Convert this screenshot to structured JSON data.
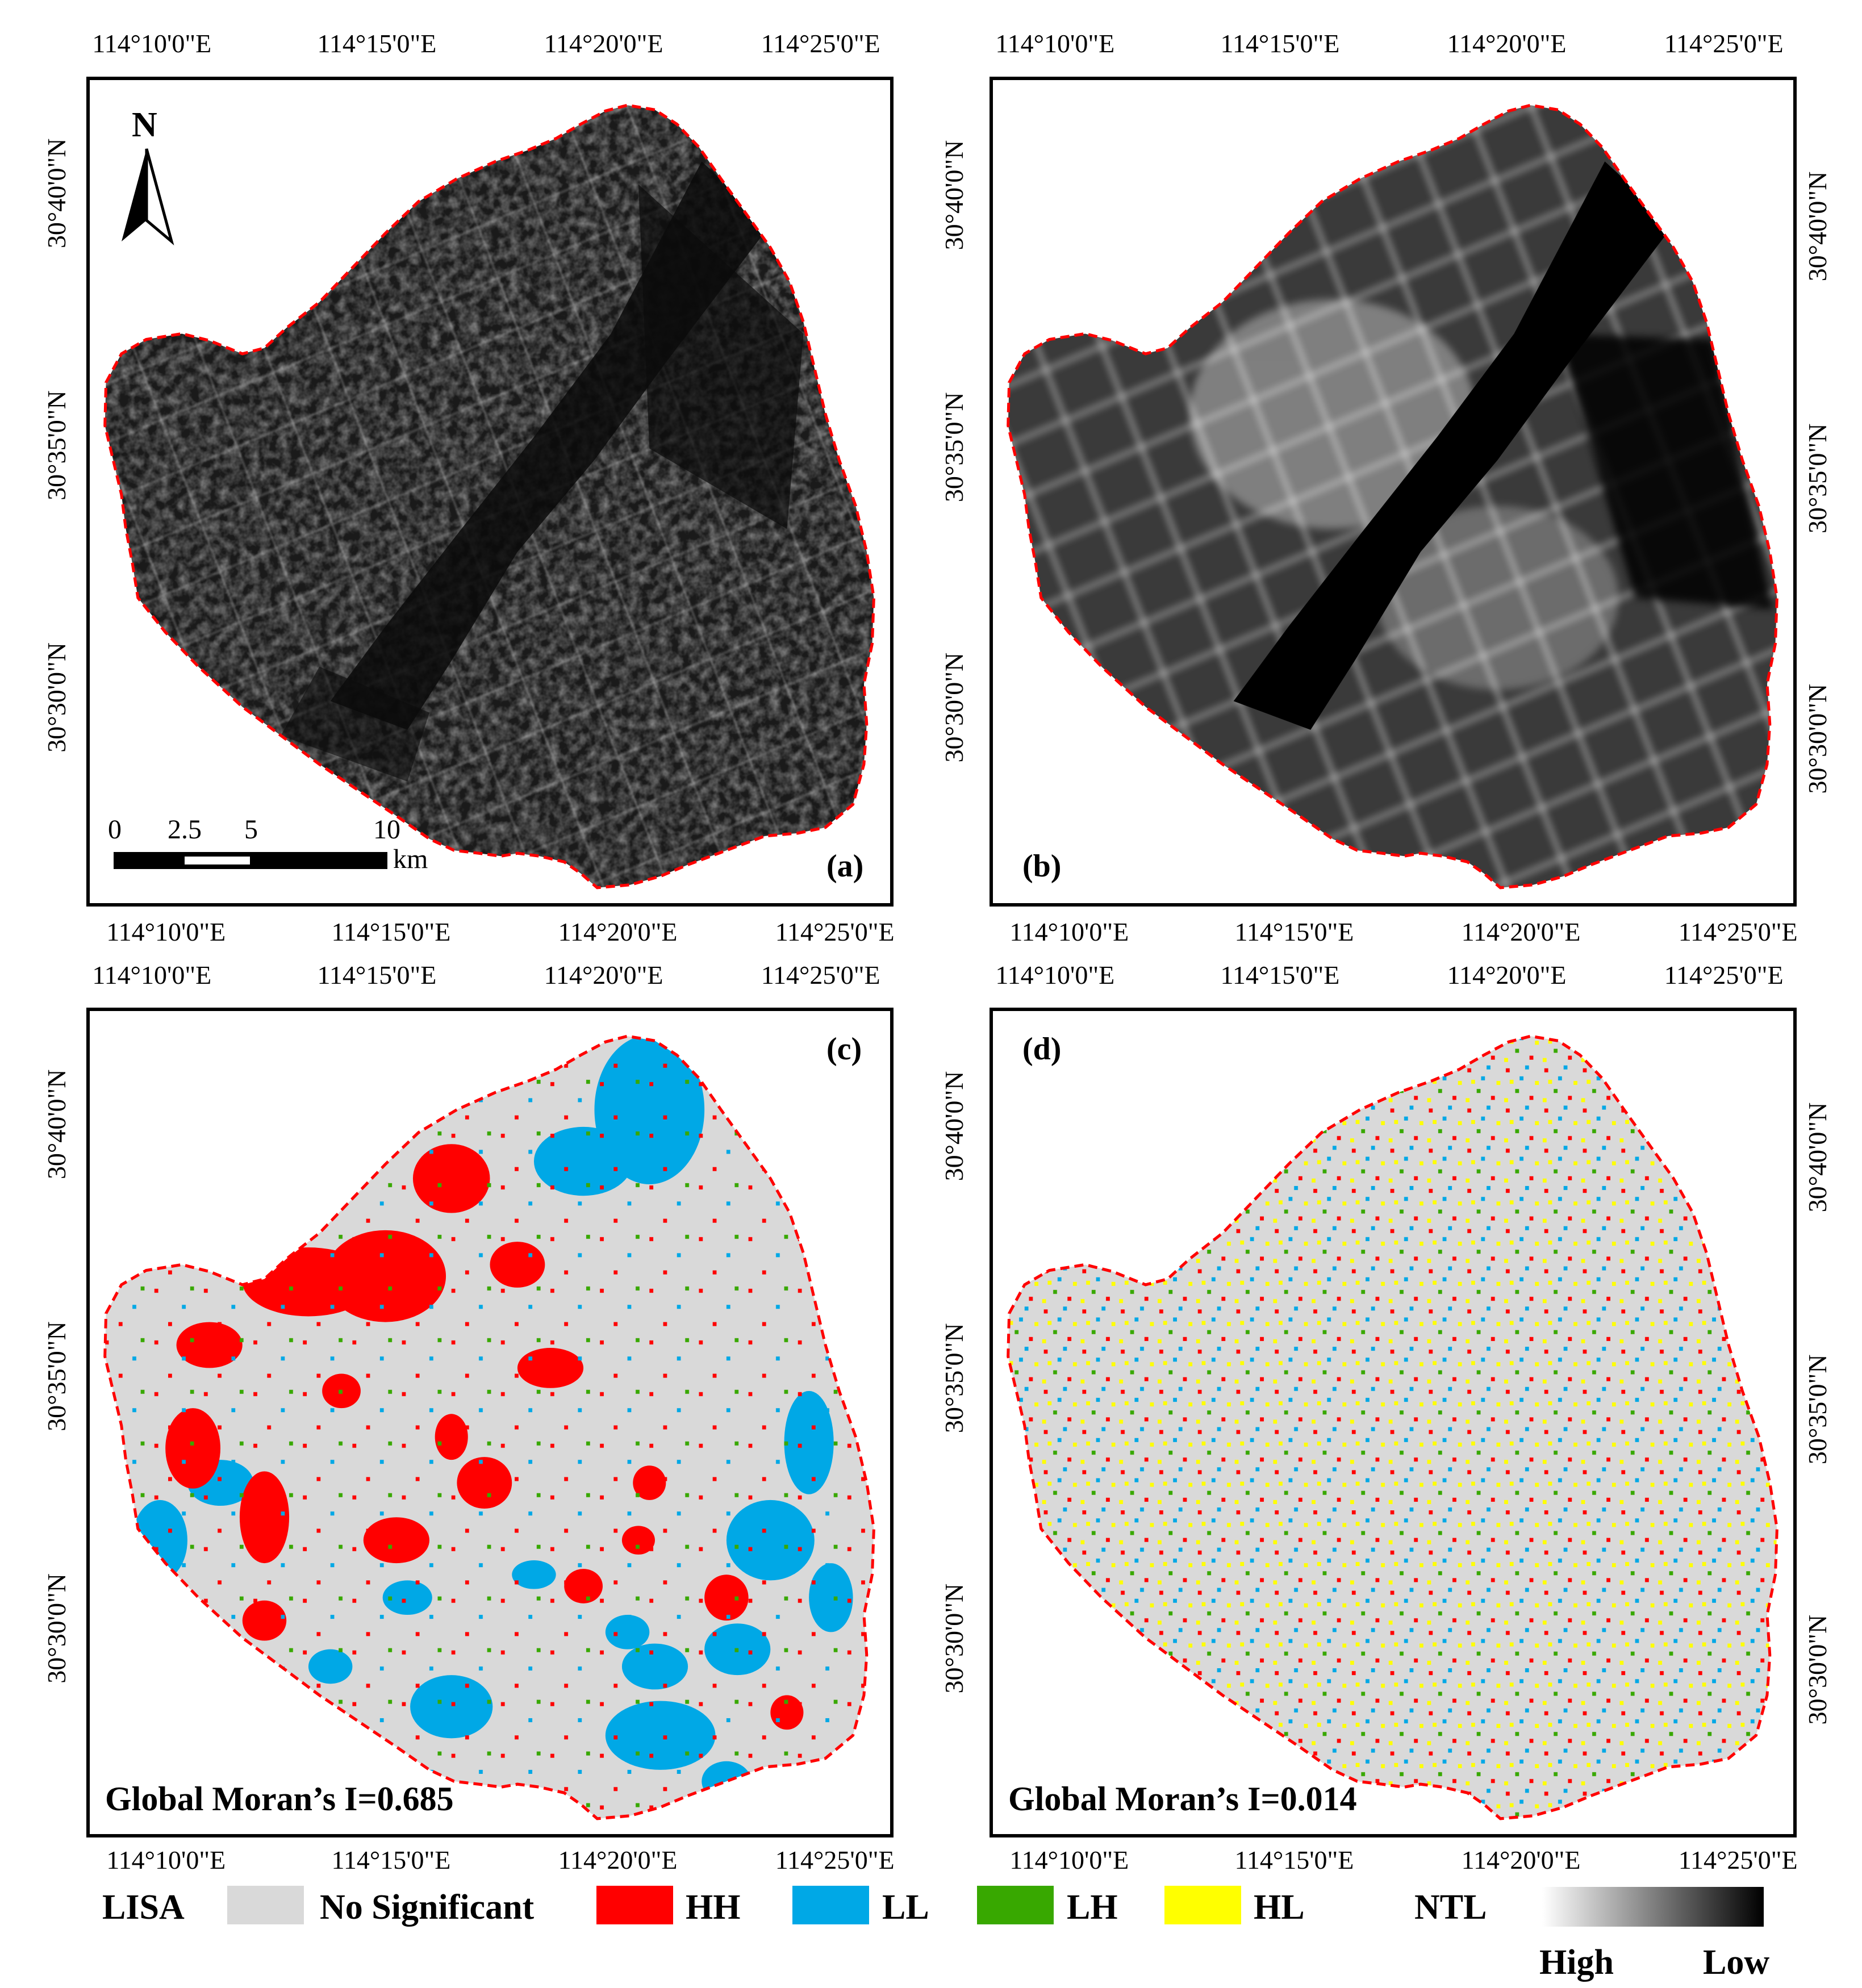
{
  "colors": {
    "no_significant": "#d9d9d9",
    "HH": "#ff0000",
    "LL": "#00a8e6",
    "LH": "#38a800",
    "HL": "#ffff00",
    "boundary": "#ff0000"
  },
  "lon_labels": [
    "114°10'0\"E",
    "114°15'0\"E",
    "114°20'0\"E",
    "114°25'0\"E"
  ],
  "lat_labels": [
    "30°40'0\"N",
    "30°35'0\"N",
    "30°30'0\"N"
  ],
  "panels": [
    {
      "letter": "(a)",
      "kind": "ntl-raw",
      "caption": ""
    },
    {
      "letter": "(b)",
      "kind": "ntl-smoothed",
      "caption": ""
    },
    {
      "letter": "(c)",
      "kind": "lisa-clustered",
      "caption": "Global Moran’s I=0.685",
      "global_morans_i": 0.685
    },
    {
      "letter": "(d)",
      "kind": "lisa-random",
      "caption": "Global Moran’s I=0.014",
      "global_morans_i": 0.014
    }
  ],
  "north_arrow": {
    "label": "N"
  },
  "scale_bar": {
    "ticks": [
      "0",
      "2.5",
      "5",
      "10"
    ],
    "unit": "km"
  },
  "legend": {
    "lisa_title": "LISA",
    "classes": [
      {
        "label": "No Significant",
        "color": "#d9d9d9"
      },
      {
        "label": "HH",
        "color": "#ff0000"
      },
      {
        "label": "LL",
        "color": "#00a8e6"
      },
      {
        "label": "LH",
        "color": "#38a800"
      },
      {
        "label": "HL",
        "color": "#ffff00"
      }
    ],
    "ntl_title": "NTL",
    "ntl_high": "High",
    "ntl_low": "Low"
  }
}
